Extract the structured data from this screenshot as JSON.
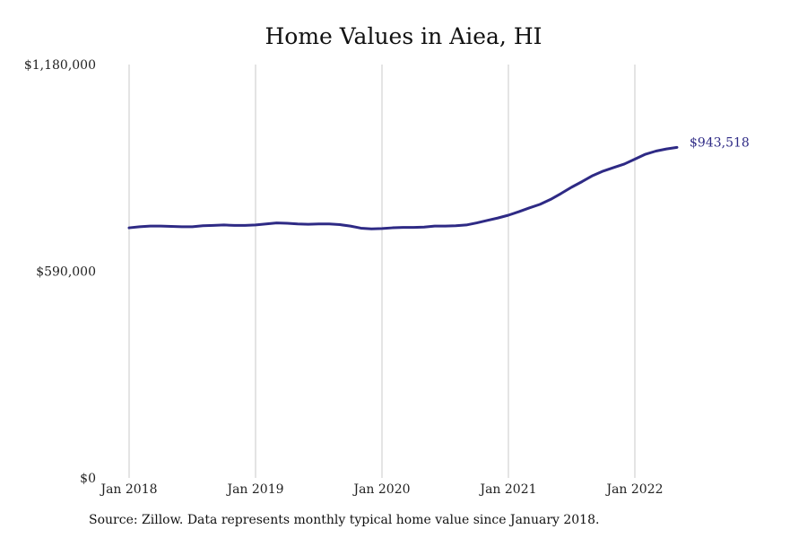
{
  "footer": {
    "source": "Source: Zillow. Data represents monthly typical home value since January 2018."
  },
  "chart_data": {
    "type": "line",
    "title": "Home Values in Aiea, HI",
    "xlabel": "",
    "ylabel": "",
    "x_ticks": [
      "Jan 2018",
      "Jan 2019",
      "Jan 2020",
      "Jan 2021",
      "Jan 2022"
    ],
    "y_ticks": [
      "$0",
      "$590,000",
      "$1,180,000"
    ],
    "ylim": [
      0,
      1180000
    ],
    "grid": {
      "vertical": true,
      "horizontal": false
    },
    "colors": {
      "line": "#2e2a85",
      "grid": "#c8c8c8",
      "text": "#222222"
    },
    "end_label": "$943,518",
    "series": [
      {
        "values": [
          714000,
          717000,
          719000,
          719000,
          718000,
          717000,
          717000,
          720000,
          721000,
          722000,
          721000,
          721000,
          722000,
          725000,
          728000,
          727000,
          725000,
          724000,
          725000,
          725000,
          723000,
          719000,
          713000,
          711000,
          712000,
          714000,
          715000,
          715000,
          716000,
          719000,
          719000,
          720000,
          722000,
          728000,
          735000,
          742000,
          750000,
          760000,
          771000,
          781000,
          795000,
          812000,
          830000,
          846000,
          863000,
          876000,
          886000,
          896000,
          910000,
          924000,
          933000,
          939000,
          943518
        ]
      }
    ]
  }
}
